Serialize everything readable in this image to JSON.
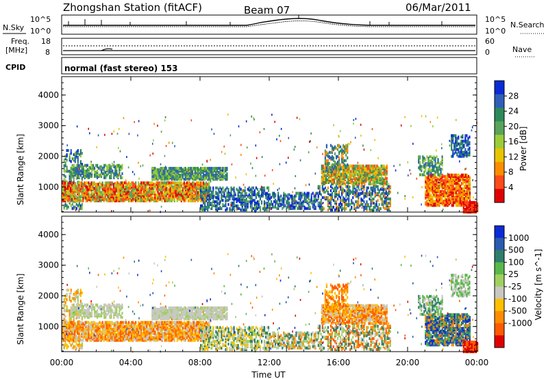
{
  "header": {
    "title": "Zhongshan Station (fitACF)",
    "beam": "Beam 07",
    "date": "06/Mar/2011"
  },
  "noise_panel": {
    "left_label": "N.Sky",
    "left_top": "10^5",
    "left_bottom": "10^0",
    "right_label": "N.Search",
    "right_top": "10^5",
    "right_bottom": "10^0"
  },
  "freq_panel": {
    "left_label_1": "Freq.",
    "left_label_2": "[MHz]",
    "left_top": "18",
    "left_bottom": "8",
    "right_label": "Nave",
    "right_top": "60",
    "right_bottom": "0"
  },
  "cpid": {
    "label": "CPID",
    "text": "normal (fast stereo) 153"
  },
  "colors": {
    "power": [
      "#0a2bd6",
      "#2f5fb8",
      "#2e8a5a",
      "#5aa35a",
      "#9bcc3a",
      "#e8c400",
      "#ff8c00",
      "#ff4a1a",
      "#e00000"
    ],
    "velocity": [
      "#0a2bd6",
      "#2a5bb0",
      "#2f7f6a",
      "#5ab84a",
      "#a0d060",
      "#c8c8c0",
      "#ffc000",
      "#ff8c00",
      "#ff5a00",
      "#e00000"
    ]
  },
  "chart_data": [
    {
      "type": "heatmap",
      "name": "power",
      "xlabel": "",
      "ylabel": "Slant Range [km]",
      "ylim": [
        180,
        4600
      ],
      "yticks": [
        "1000",
        "2000",
        "3000",
        "4000"
      ],
      "xticks": [],
      "colorbar": {
        "label": "Power [dB]",
        "ticks": [
          "4",
          "8",
          "12",
          "16",
          "20",
          "24",
          "28"
        ],
        "range": [
          0,
          32
        ]
      }
    },
    {
      "type": "heatmap",
      "name": "velocity",
      "xlabel": "Time UT",
      "ylabel": "Slant Range [km]",
      "ylim": [
        180,
        4600
      ],
      "yticks": [
        "1000",
        "2000",
        "3000",
        "4000"
      ],
      "xticks": [
        "00:00",
        "04:00",
        "08:00",
        "12:00",
        "16:00",
        "20:00",
        "00:00"
      ],
      "colorbar": {
        "label": "Velocity [m s^-1]",
        "ticks": [
          "1000",
          "500",
          "100",
          "25",
          "-25",
          "-100",
          "-500",
          "-1000"
        ]
      }
    }
  ]
}
